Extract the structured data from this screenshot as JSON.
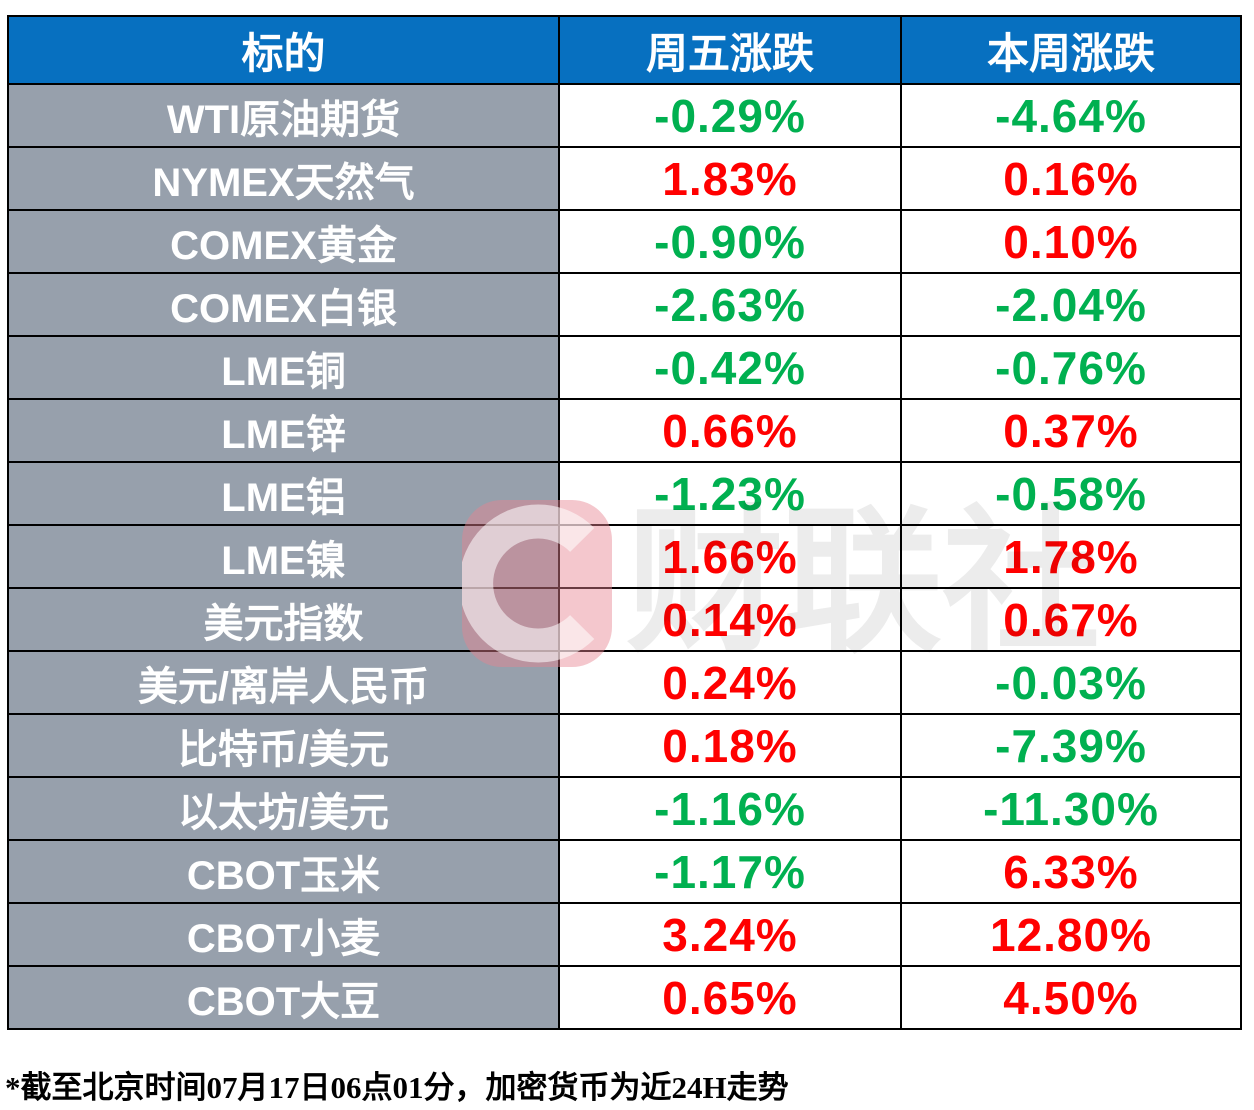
{
  "table": {
    "headers": [
      "标的",
      "周五涨跌",
      "本周涨跌"
    ],
    "rows": [
      {
        "label": "WTI原油期货",
        "friday": "-0.29%",
        "week": "-4.64%"
      },
      {
        "label": "NYMEX天然气",
        "friday": "1.83%",
        "week": "0.16%"
      },
      {
        "label": "COMEX黄金",
        "friday": "-0.90%",
        "week": "0.10%"
      },
      {
        "label": "COMEX白银",
        "friday": "-2.63%",
        "week": "-2.04%"
      },
      {
        "label": "LME铜",
        "friday": "-0.42%",
        "week": "-0.76%"
      },
      {
        "label": "LME锌",
        "friday": "0.66%",
        "week": "0.37%"
      },
      {
        "label": "LME铝",
        "friday": "-1.23%",
        "week": "-0.58%"
      },
      {
        "label": "LME镍",
        "friday": "1.66%",
        "week": "1.78%"
      },
      {
        "label": "美元指数",
        "friday": "0.14%",
        "week": "0.67%"
      },
      {
        "label": "美元/离岸人民币",
        "friday": "0.24%",
        "week": "-0.03%"
      },
      {
        "label": "比特币/美元",
        "friday": "0.18%",
        "week": "-7.39%"
      },
      {
        "label": "以太坊/美元",
        "friday": "-1.16%",
        "week": "-11.30%"
      },
      {
        "label": "CBOT玉米",
        "friday": "-1.17%",
        "week": "6.33%"
      },
      {
        "label": "CBOT小麦",
        "friday": "3.24%",
        "week": "12.80%"
      },
      {
        "label": "CBOT大豆",
        "friday": "0.65%",
        "week": "4.50%"
      }
    ]
  },
  "footnote": "*截至北京时间07月17日06点01分，加密货币为近24H走势",
  "watermark": {
    "text": "财联社",
    "logo": "cailianshe-c-logo"
  },
  "colors": {
    "header_bg": "#0770c0",
    "header_text": "#ffffff",
    "label_bg": "#97a0ac",
    "label_text": "#ffffff",
    "up_red": "#ff0000",
    "down_green": "#00b050",
    "grid_border": "#000000",
    "watermark_pink": "rgba(231,130,145,0.45)",
    "watermark_gray": "rgba(0,0,0,0.075)"
  },
  "chart_data": {
    "type": "table",
    "title": "周五涨跌 / 本周涨跌",
    "columns": [
      "标的",
      "周五涨跌(%)",
      "本周涨跌(%)"
    ],
    "rows": [
      [
        "WTI原油期货",
        -0.29,
        -4.64
      ],
      [
        "NYMEX天然气",
        1.83,
        0.16
      ],
      [
        "COMEX黄金",
        -0.9,
        0.1
      ],
      [
        "COMEX白银",
        -2.63,
        -2.04
      ],
      [
        "LME铜",
        -0.42,
        -0.76
      ],
      [
        "LME锌",
        0.66,
        0.37
      ],
      [
        "LME铝",
        -1.23,
        -0.58
      ],
      [
        "LME镍",
        1.66,
        1.78
      ],
      [
        "美元指数",
        0.14,
        0.67
      ],
      [
        "美元/离岸人民币",
        0.24,
        -0.03
      ],
      [
        "比特币/美元",
        0.18,
        -7.39
      ],
      [
        "以太坊/美元",
        -1.16,
        -11.3
      ],
      [
        "CBOT玉米",
        -1.17,
        6.33
      ],
      [
        "CBOT小麦",
        3.24,
        12.8
      ],
      [
        "CBOT大豆",
        0.65,
        4.5
      ]
    ],
    "annotations": [
      "*截至北京时间07月17日06点01分，加密货币为近24H走势"
    ],
    "color_convention": "positive values red (#ff0000), negative values green (#00b050)"
  }
}
